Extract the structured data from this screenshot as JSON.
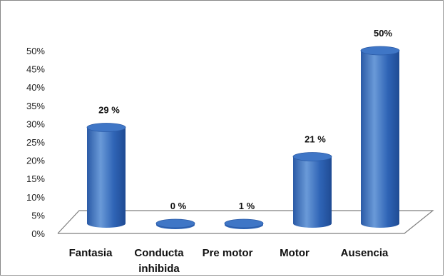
{
  "chart_data": {
    "type": "bar",
    "categories": [
      "Fantasia",
      "Conducta inhibida",
      "Pre motor",
      "Motor",
      "Ausencia"
    ],
    "category_lines": [
      [
        "Fantasia"
      ],
      [
        "Conducta",
        "inhibida"
      ],
      [
        "Pre motor"
      ],
      [
        "Motor"
      ],
      [
        "Ausencia"
      ]
    ],
    "values": [
      29,
      0,
      1,
      21,
      50
    ],
    "data_labels": [
      "29 %",
      "0 %",
      "1 %",
      "21 %",
      "50%"
    ],
    "yticks": [
      "0%",
      "5%",
      "10%",
      "15%",
      "20%",
      "25%",
      "30%",
      "35%",
      "40%",
      "45%",
      "50%"
    ],
    "ylim": [
      0,
      50
    ],
    "title": "",
    "xlabel": "",
    "ylabel": "",
    "bar_shape": "cylinder",
    "grid": false,
    "legend": "none",
    "colors": {
      "bar_body": "#2e63b4",
      "bar_highlight": "#6a9ad8",
      "bar_top": "#3f76c6",
      "floor_line": "#7f7f7f"
    }
  }
}
